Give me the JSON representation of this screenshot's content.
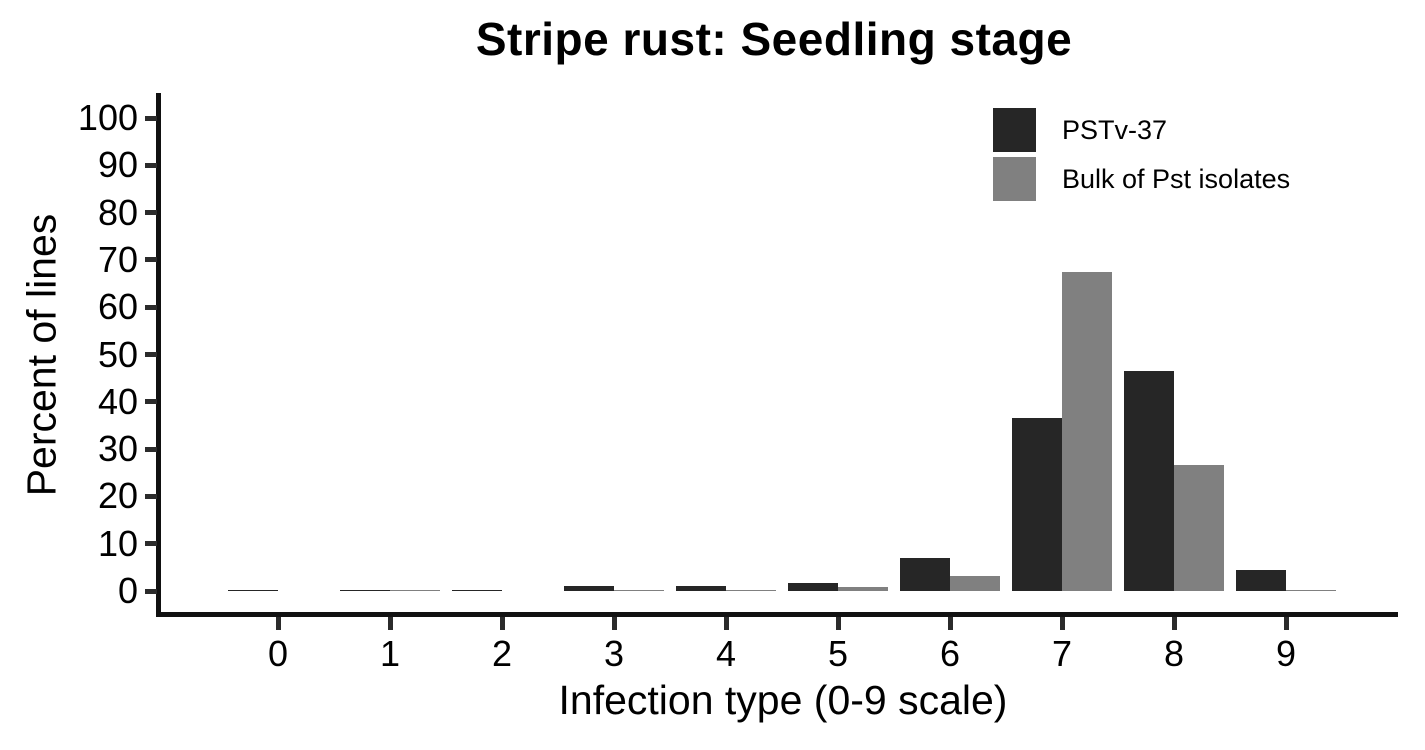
{
  "chart_data": {
    "type": "bar",
    "bar_layout": "grouped-dodged",
    "title": "Stripe rust: Seedling stage",
    "xlabel": "Infection type (0-9 scale)",
    "ylabel": "Percent of lines",
    "categories": [
      "0",
      "1",
      "2",
      "3",
      "4",
      "5",
      "6",
      "7",
      "8",
      "9"
    ],
    "series": [
      {
        "name": "PSTv-37",
        "color": "#262626",
        "values": [
          0.2,
          0.3,
          0.3,
          1.1,
          1.1,
          1.6,
          6.9,
          36.6,
          46.5,
          4.5
        ]
      },
      {
        "name": "Bulk of Pst isolates",
        "color": "#808080",
        "values": [
          0,
          0.2,
          0,
          0.2,
          0.2,
          0.9,
          3.1,
          67.4,
          26.6,
          0.2
        ]
      }
    ],
    "ylim": [
      0,
      100
    ],
    "yticks": [
      0,
      10,
      20,
      30,
      40,
      50,
      60,
      70,
      80,
      90,
      100
    ],
    "grid": false,
    "legend_position": "top-right-inside"
  },
  "colors": {
    "axis": "#111111",
    "tick": "#2b2b2b",
    "text": "#000000",
    "background": "#ffffff"
  }
}
